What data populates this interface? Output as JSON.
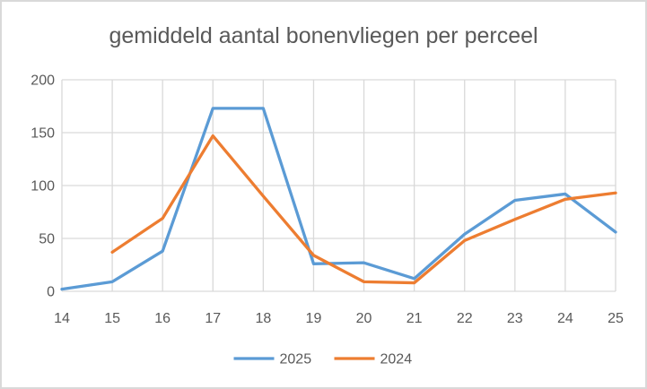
{
  "frame": {
    "background": "#FFFFFF",
    "border_color": "#D9D9D9"
  },
  "colors": {
    "grid": "#D9D9D9",
    "axis_text": "#595959",
    "title_text": "#595959"
  },
  "chart_data": {
    "type": "line",
    "title": "gemiddeld aantal bonenvliegen per perceel",
    "xlabel": "",
    "ylabel": "",
    "x": [
      14,
      15,
      16,
      17,
      18,
      19,
      20,
      21,
      22,
      23,
      24,
      25
    ],
    "ylim": [
      0,
      200
    ],
    "yticks": [
      0,
      50,
      100,
      150,
      200
    ],
    "grid": true,
    "legend_position": "bottom",
    "series": [
      {
        "name": "2025",
        "color": "#5B9BD5",
        "values": [
          2,
          9,
          38,
          173,
          173,
          26,
          27,
          12,
          54,
          86,
          92,
          56
        ]
      },
      {
        "name": "2024",
        "color": "#ED7D31",
        "values": [
          null,
          37,
          69,
          147,
          90,
          34,
          9,
          8,
          48,
          68,
          87,
          93
        ]
      }
    ]
  }
}
